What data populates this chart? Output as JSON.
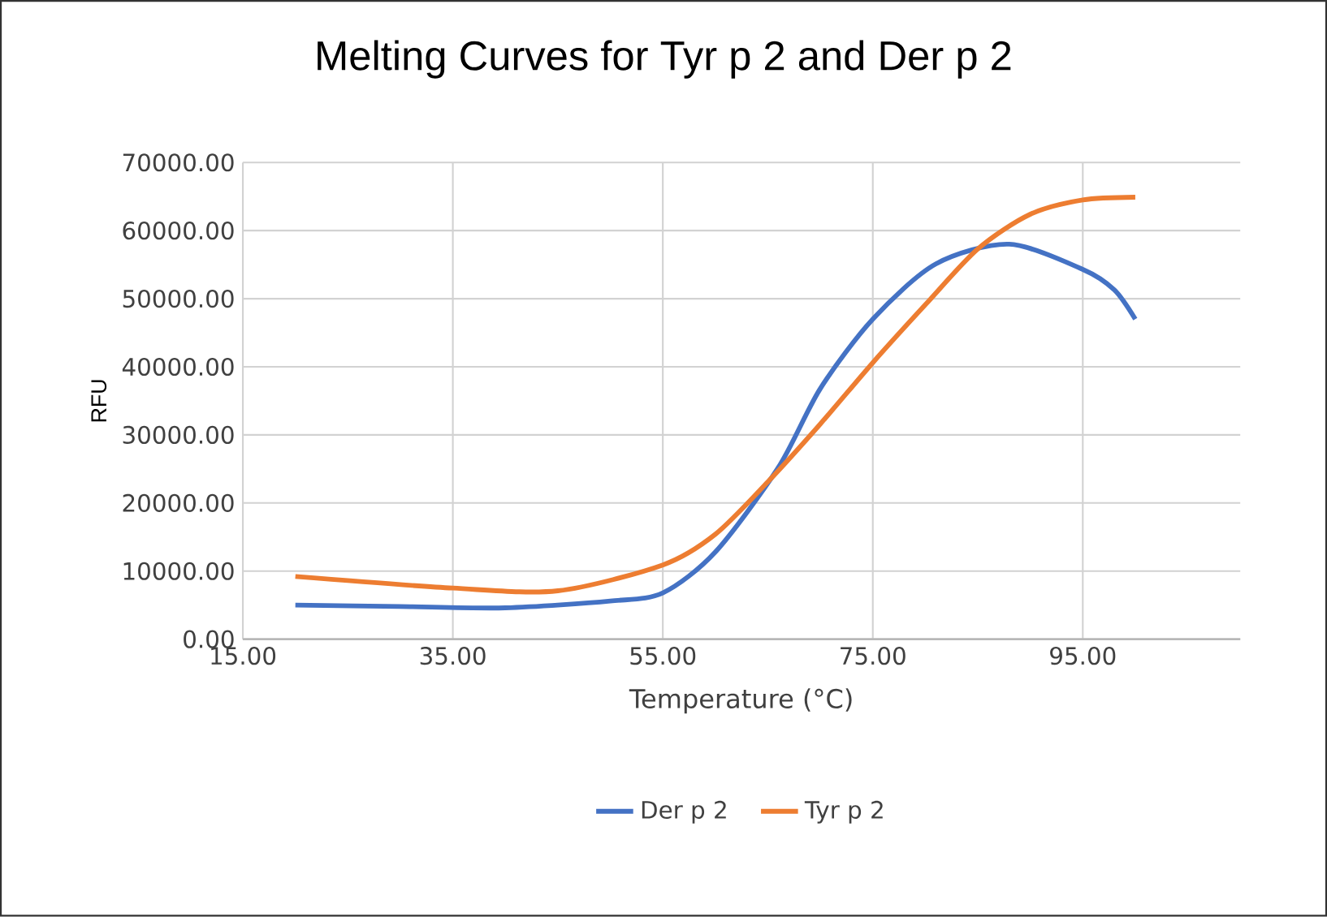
{
  "chart_data": {
    "type": "line",
    "title": "Melting Curves for Tyr p 2 and Der p 2",
    "xlabel": "Temperature (°C)",
    "ylabel": "RFU",
    "xlim": [
      15,
      110
    ],
    "xticks": [
      {
        "value": 15,
        "label": "15.00"
      },
      {
        "value": 35,
        "label": "35.00"
      },
      {
        "value": 55,
        "label": "55.00"
      },
      {
        "value": 75,
        "label": "75.00"
      },
      {
        "value": 95,
        "label": "95.00"
      }
    ],
    "ylim": [
      0,
      70000
    ],
    "yticks": [
      {
        "value": 0,
        "label": "0.00"
      },
      {
        "value": 10000,
        "label": "10000.00"
      },
      {
        "value": 20000,
        "label": "20000.00"
      },
      {
        "value": 30000,
        "label": "30000.00"
      },
      {
        "value": 40000,
        "label": "40000.00"
      },
      {
        "value": 50000,
        "label": "50000.00"
      },
      {
        "value": 60000,
        "label": "60000.00"
      },
      {
        "value": 70000,
        "label": "70000.00"
      }
    ],
    "grid": true,
    "legend": "bottom",
    "marker": "none",
    "line_style": "solid",
    "series": [
      {
        "name": "Der p 2",
        "color": "#4472c4",
        "x": [
          20,
          30,
          40,
          50,
          55,
          60,
          66,
          70,
          75,
          81,
          88,
          95,
          98,
          100
        ],
        "values": [
          5000,
          4800,
          4600,
          5600,
          6800,
          12800,
          25200,
          36800,
          47000,
          55100,
          58000,
          54300,
          51300,
          47000
        ]
      },
      {
        "name": "Tyr p 2",
        "color": "#ed7d31",
        "x": [
          20,
          35,
          45,
          55,
          60,
          65,
          70,
          75,
          80,
          85,
          90,
          95,
          100
        ],
        "values": [
          9200,
          7500,
          7100,
          10900,
          15400,
          23100,
          31600,
          40600,
          49100,
          57300,
          62400,
          64500,
          64900
        ]
      }
    ]
  }
}
